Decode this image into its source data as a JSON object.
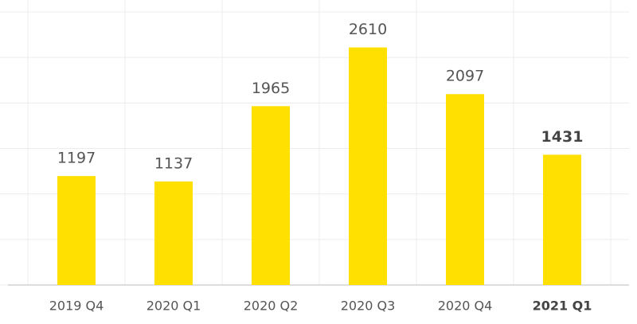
{
  "chart_data": {
    "type": "bar",
    "categories": [
      "2019 Q4",
      "2020 Q1",
      "2020 Q2",
      "2020 Q3",
      "2020 Q4",
      "2021 Q1"
    ],
    "values": [
      1197,
      1137,
      1965,
      2610,
      2097,
      1431
    ],
    "color": "#ffe000",
    "ylim": [
      0,
      3000
    ],
    "yticks": [
      0,
      500,
      1000,
      1500,
      2000,
      2500,
      3000
    ],
    "grid": true,
    "highlight_index": 5
  }
}
